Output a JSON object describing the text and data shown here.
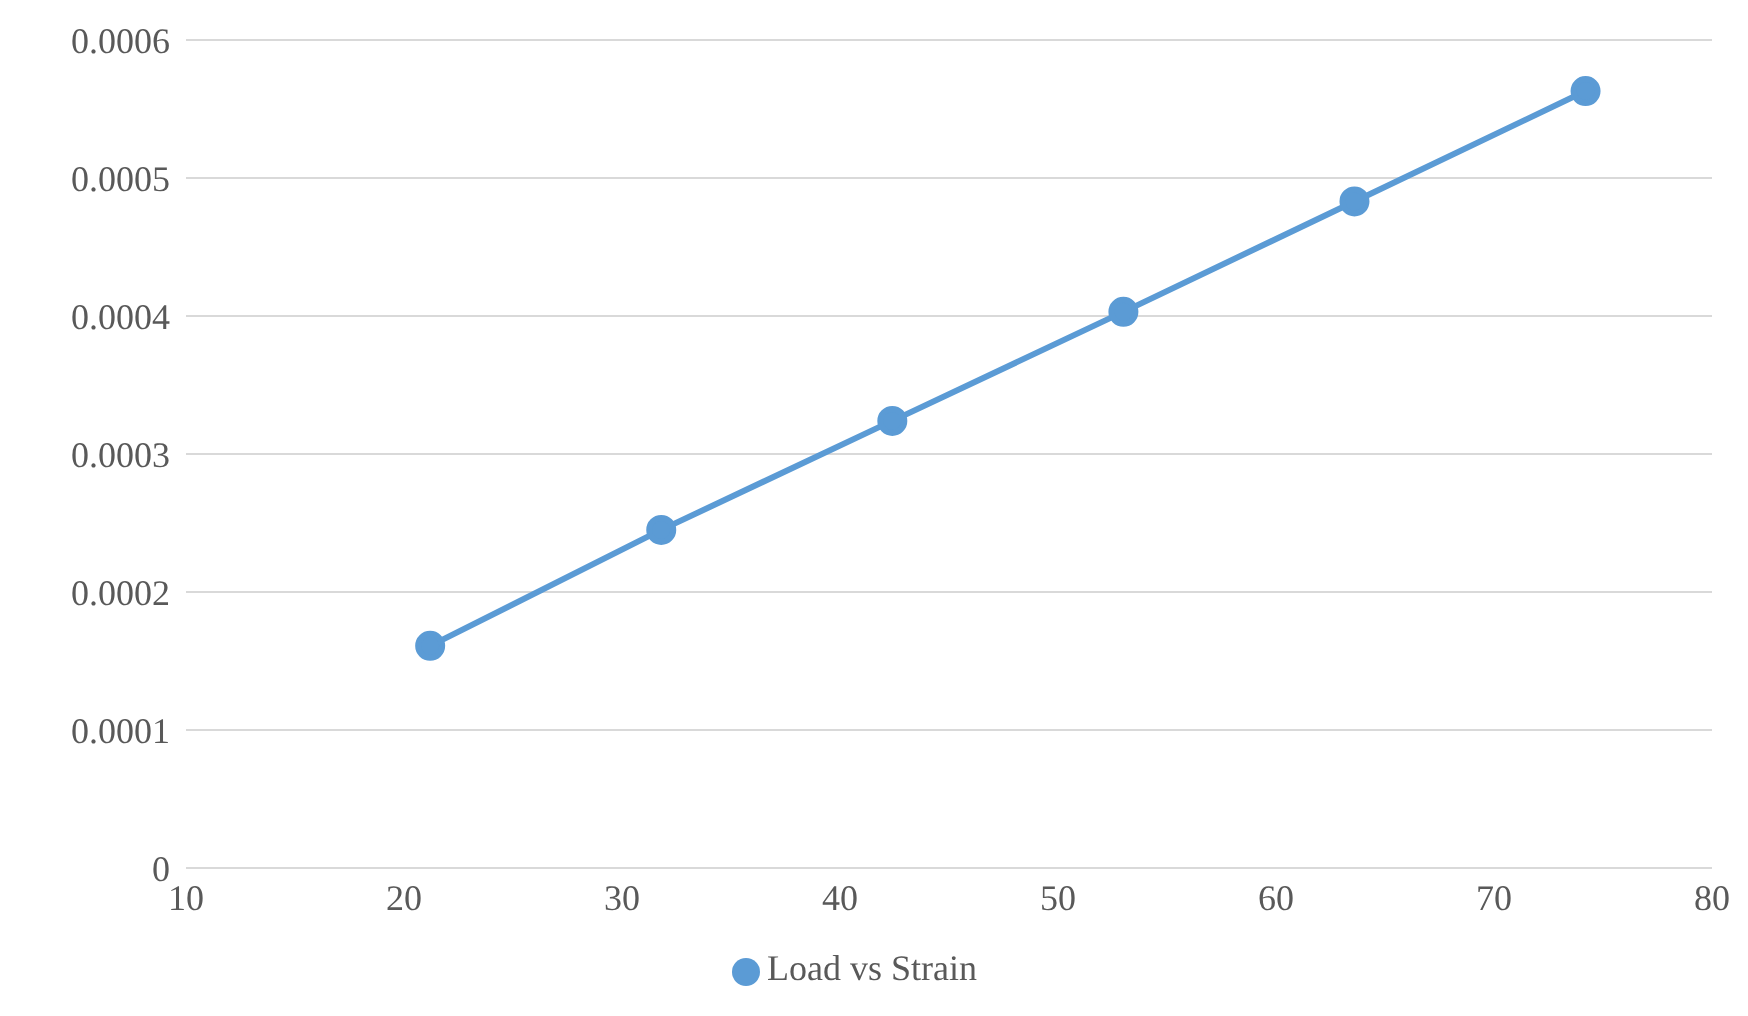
{
  "chart_data": {
    "type": "line",
    "x": [
      21.2,
      31.8,
      42.4,
      53,
      63.6,
      74.2
    ],
    "series": [
      {
        "name": "Load vs Strain",
        "color": "#5b9bd5",
        "values": [
          0.000161,
          0.000245,
          0.000324,
          0.000403,
          0.000483,
          0.000563
        ]
      }
    ],
    "xlim": [
      10,
      80
    ],
    "xticks": [
      10,
      20,
      30,
      40,
      50,
      60,
      70,
      80
    ],
    "ylim": [
      0,
      0.0006
    ],
    "yticks": [
      0,
      0.0001,
      0.0002,
      0.0003,
      0.0004,
      0.0005,
      0.0006
    ],
    "grid": "y",
    "legend": "bottom",
    "marker": "circle",
    "line_style": "solid"
  }
}
